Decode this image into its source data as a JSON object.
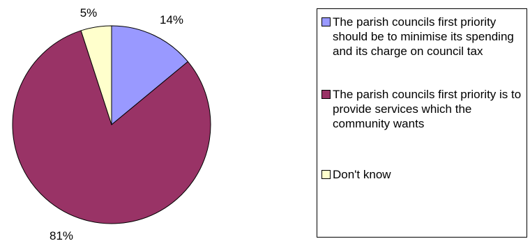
{
  "chart_data": {
    "type": "pie",
    "slices": [
      {
        "label": "The parish councils first priority should be to minimise its spending and its charge on council tax",
        "value": 14,
        "display": "14%",
        "color": "#9999FF"
      },
      {
        "label": "The parish councils first priority is to provide services which the community wants",
        "value": 81,
        "display": "81%",
        "color": "#993366"
      },
      {
        "label": "Don't know",
        "value": 5,
        "display": "5%",
        "color": "#FFFFCC"
      }
    ],
    "start_angle_deg": 0,
    "direction": "clockwise",
    "legend_position": "right"
  }
}
